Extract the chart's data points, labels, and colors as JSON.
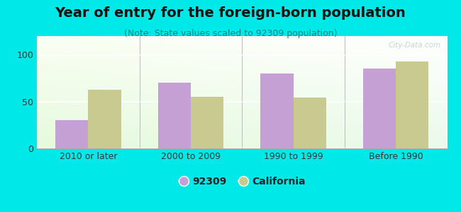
{
  "title": "Year of entry for the foreign-born population",
  "subtitle": "(Note: State values scaled to 92309 population)",
  "categories": [
    "2010 or later",
    "2000 to 2009",
    "1990 to 1999",
    "Before 1990"
  ],
  "values_92309": [
    30,
    70,
    80,
    85
  ],
  "values_california": [
    63,
    55,
    54,
    93
  ],
  "bar_color_92309": "#c4a0d4",
  "bar_color_california": "#c8ca90",
  "background_color": "#00e8e8",
  "ylim": [
    0,
    120
  ],
  "yticks": [
    0,
    50,
    100
  ],
  "legend_label_92309": "92309",
  "legend_label_california": "California",
  "title_fontsize": 14,
  "subtitle_fontsize": 9,
  "tick_fontsize": 9,
  "legend_fontsize": 10,
  "bar_width": 0.32,
  "watermark_text": "City-Data.com",
  "title_color": "#111111",
  "subtitle_color": "#008888",
  "tick_color": "#333333"
}
